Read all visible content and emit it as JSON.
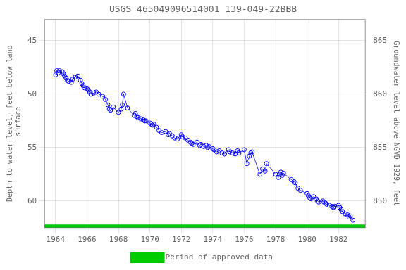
{
  "chart_data": {
    "type": "line",
    "title": "USGS 465049096514001 139-049-22BBB",
    "ylabel": "Depth to water level, feet below land\n surface",
    "y2label": "Groundwater level above NGVD 1929, feet",
    "xlim": [
      1963.3,
      1983.7
    ],
    "xticks": [
      1964,
      1966,
      1968,
      1970,
      1972,
      1974,
      1976,
      1978,
      1980,
      1982
    ],
    "ylim": [
      62.5,
      43.0
    ],
    "yticks": [
      45,
      50,
      55,
      60
    ],
    "y2lim": [
      847.5,
      867.0
    ],
    "y2ticks": [
      850,
      855,
      860,
      865
    ],
    "grid": true,
    "legend": "bottom",
    "x": [
      1964.0,
      1964.08,
      1964.17,
      1964.25,
      1964.42,
      1964.5,
      1964.58,
      1964.67,
      1964.75,
      1964.83,
      1965.0,
      1965.08,
      1965.25,
      1965.42,
      1965.58,
      1965.67,
      1965.75,
      1965.83,
      1966.0,
      1966.08,
      1966.17,
      1966.25,
      1966.42,
      1966.58,
      1966.75,
      1967.0,
      1967.17,
      1967.33,
      1967.42,
      1967.5,
      1967.67,
      1968.0,
      1968.17,
      1968.25,
      1968.33,
      1968.58,
      1969.0,
      1969.08,
      1969.17,
      1969.25,
      1969.42,
      1969.58,
      1969.67,
      1969.75,
      1970.0,
      1970.08,
      1970.17,
      1970.25,
      1970.42,
      1970.58,
      1970.75,
      1971.0,
      1971.17,
      1971.25,
      1971.42,
      1971.58,
      1971.75,
      1972.0,
      1972.08,
      1972.25,
      1972.42,
      1972.58,
      1972.67,
      1972.75,
      1973.0,
      1973.17,
      1973.25,
      1973.42,
      1973.58,
      1973.67,
      1973.75,
      1974.0,
      1974.08,
      1974.25,
      1974.42,
      1974.58,
      1974.75,
      1975.0,
      1975.08,
      1975.25,
      1975.42,
      1975.58,
      1975.67,
      1976.0,
      1976.17,
      1976.33,
      1976.42,
      1976.5,
      1977.0,
      1977.17,
      1977.33,
      1977.42,
      1978.0,
      1978.17,
      1978.25,
      1978.33,
      1978.42,
      1978.5,
      1979.0,
      1979.17,
      1979.25,
      1979.42,
      1979.58,
      1980.0,
      1980.08,
      1980.17,
      1980.25,
      1980.42,
      1980.58,
      1980.67,
      1980.75,
      1981.0,
      1981.08,
      1981.17,
      1981.25,
      1981.42,
      1981.58,
      1981.67,
      1981.75,
      1982.0,
      1982.08,
      1982.17,
      1982.25,
      1982.42,
      1982.58,
      1982.67,
      1982.75,
      1982.92
    ],
    "series": [
      {
        "color": "#0000ff",
        "marker": "circle",
        "values": [
          48.2,
          47.8,
          48.0,
          47.8,
          47.9,
          48.1,
          48.3,
          48.5,
          48.7,
          48.8,
          48.9,
          48.6,
          48.4,
          48.3,
          48.7,
          49.0,
          49.2,
          49.4,
          49.5,
          49.6,
          49.8,
          50.0,
          49.9,
          49.8,
          50.0,
          50.2,
          50.5,
          51.0,
          51.4,
          51.5,
          51.2,
          51.7,
          51.4,
          51.0,
          50.0,
          51.3,
          52.0,
          51.8,
          52.1,
          52.2,
          52.3,
          52.4,
          52.5,
          52.5,
          52.7,
          52.8,
          52.9,
          52.8,
          53.1,
          53.4,
          53.6,
          53.5,
          53.8,
          53.7,
          53.9,
          54.1,
          54.2,
          53.8,
          54.0,
          54.1,
          54.3,
          54.5,
          54.6,
          54.7,
          54.5,
          54.8,
          54.7,
          54.9,
          54.8,
          55.0,
          54.9,
          55.1,
          55.2,
          55.4,
          55.3,
          55.5,
          55.6,
          55.2,
          55.4,
          55.5,
          55.6,
          55.3,
          55.5,
          55.2,
          56.5,
          55.8,
          55.5,
          55.4,
          57.5,
          57.0,
          57.2,
          56.5,
          57.5,
          57.8,
          57.5,
          57.3,
          57.6,
          57.4,
          58.0,
          58.2,
          58.3,
          58.8,
          59.0,
          59.3,
          59.5,
          59.7,
          59.8,
          59.6,
          59.8,
          60.0,
          60.1,
          60.0,
          60.1,
          60.2,
          60.3,
          60.4,
          60.5,
          60.6,
          60.5,
          60.4,
          60.6,
          60.8,
          61.0,
          61.2,
          61.3,
          61.5,
          61.4,
          61.8
        ]
      },
      {
        "name": "Period of approved data",
        "color": "#00cc00",
        "type": "band"
      }
    ]
  }
}
